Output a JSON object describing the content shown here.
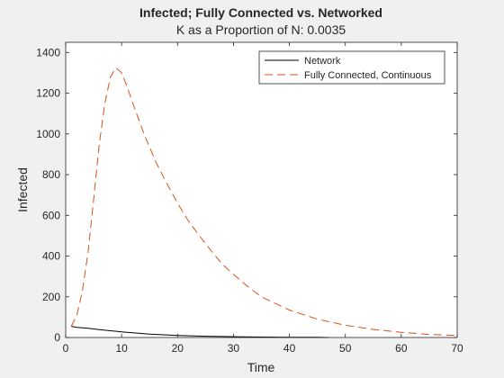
{
  "chart_data": {
    "type": "line",
    "title": "Infected; Fully Connected vs. Networked",
    "subtitle": "K as a Proportion of N: 0.0035",
    "xlabel": "Time",
    "ylabel": "Infected",
    "xlim": [
      0,
      70
    ],
    "ylim": [
      0,
      1450
    ],
    "xticks": [
      0,
      10,
      20,
      30,
      40,
      50,
      60,
      70
    ],
    "yticks": [
      0,
      200,
      400,
      600,
      800,
      1000,
      1200,
      1400
    ],
    "grid": false,
    "legend_position": "top-right",
    "series": [
      {
        "name": "Network",
        "color": "#000000",
        "line_style": "solid",
        "x": [
          1,
          2,
          4,
          6,
          8,
          10,
          12,
          15,
          18,
          20,
          25,
          30,
          35,
          40,
          45,
          47
        ],
        "y": [
          55,
          50,
          45,
          39,
          33,
          28,
          23,
          17,
          13,
          10,
          6,
          4,
          2,
          1,
          1,
          0
        ]
      },
      {
        "name": "Fully Connected, Continuous",
        "color": "#d95319",
        "line_style": "dashed",
        "x": [
          1,
          2,
          3,
          4,
          5,
          6,
          7,
          8,
          9,
          10,
          11,
          12,
          14,
          16,
          18,
          20,
          22,
          25,
          28,
          30,
          33,
          35,
          40,
          45,
          50,
          55,
          60,
          65,
          70
        ],
        "y": [
          55,
          110,
          230,
          420,
          680,
          950,
          1150,
          1280,
          1325,
          1300,
          1230,
          1150,
          1000,
          870,
          760,
          660,
          570,
          460,
          360,
          310,
          240,
          200,
          135,
          90,
          60,
          40,
          25,
          15,
          10
        ]
      }
    ]
  }
}
